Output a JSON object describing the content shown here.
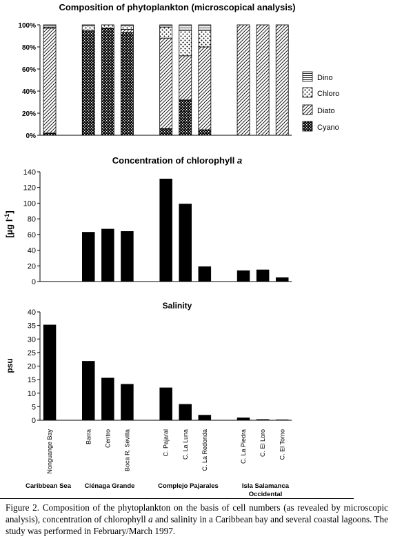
{
  "chart_data": [
    {
      "type": "bar",
      "stacked": true,
      "title": "Composition of phytoplankton (microscopical analysis)",
      "categories": [
        "Nonguange Bay",
        "",
        "Barra",
        "Centro",
        "Boca R. Sevilla",
        "",
        "C. Pajaral",
        "C. La Luna",
        "C. La Redonda",
        "",
        "C. La Piedra",
        "C. El Loro",
        "C. El Torno"
      ],
      "ylim": [
        0,
        100
      ],
      "yticks": [
        "0%",
        "20%",
        "40%",
        "60%",
        "80%",
        "100%"
      ],
      "legend_position": "right",
      "series": [
        {
          "name": "Cyano",
          "pattern": "dark-crosshatch",
          "values": [
            2,
            null,
            94,
            97,
            93,
            null,
            6,
            32,
            5,
            null,
            0,
            0,
            0
          ]
        },
        {
          "name": "Diato",
          "pattern": "diagonal-hatch",
          "values": [
            95,
            null,
            1,
            0,
            3,
            null,
            82,
            40,
            75,
            null,
            100,
            100,
            100
          ]
        },
        {
          "name": "Chloro",
          "pattern": "dots",
          "values": [
            1,
            null,
            4,
            3,
            3,
            null,
            10,
            23,
            15,
            null,
            0,
            0,
            0
          ]
        },
        {
          "name": "Dino",
          "pattern": "horizontal-lines",
          "values": [
            2,
            null,
            1,
            0,
            1,
            null,
            2,
            5,
            5,
            null,
            0,
            0,
            0
          ]
        }
      ]
    },
    {
      "type": "bar",
      "title_prefix": "Concentration of chlorophyll ",
      "title_italic": "a",
      "ylabel": "[µg l-1]",
      "ylabel_main": "[µg l",
      "ylabel_sup": "-1",
      "ylabel_end": "]",
      "ylim": [
        0,
        140
      ],
      "yticks": [
        "0",
        "20",
        "40",
        "60",
        "80",
        "100",
        "120",
        "140"
      ],
      "categories": [
        "Nonguange Bay",
        "",
        "Barra",
        "Centro",
        "Boca R. Sevilla",
        "",
        "C. Pajaral",
        "C. La Luna",
        "C. La Redonda",
        "",
        "C. La Piedra",
        "C. El Loro",
        "C. El Torno"
      ],
      "values": [
        null,
        null,
        63,
        67,
        64,
        null,
        131,
        99,
        19,
        null,
        14,
        15,
        5
      ],
      "color": "#000000"
    },
    {
      "type": "bar",
      "title": "Salinity",
      "ylabel": "psu",
      "ylim": [
        0,
        40
      ],
      "yticks": [
        "0",
        "5",
        "10",
        "15",
        "20",
        "25",
        "30",
        "35",
        "40"
      ],
      "categories": [
        "Nonguange Bay",
        "",
        "Barra",
        "Centro",
        "Boca R. Sevilla",
        "",
        "C. Pajaral",
        "C. La Luna",
        "C. La Redonda",
        "",
        "C. La Piedra",
        "C. El Loro",
        "C. El Torno"
      ],
      "values": [
        35.2,
        null,
        21.8,
        15.6,
        13.3,
        null,
        12.0,
        5.9,
        1.9,
        null,
        0.9,
        0.3,
        0.2
      ],
      "color": "#000000"
    }
  ],
  "station_labels": [
    "Nonguange Bay",
    "Barra",
    "Centro",
    "Boca R. Sevilla",
    "C. Pajaral",
    "C. La Luna",
    "C. La Redonda",
    "C. La Piedra",
    "C. El Loro",
    "C. El Torno"
  ],
  "groups": [
    {
      "label": "Caribbean Sea",
      "label2": ""
    },
    {
      "label": "Ciénaga Grande",
      "label2": ""
    },
    {
      "label": "Complejo Pajarales",
      "label2": ""
    },
    {
      "label": "Isla Salamanca",
      "label2": "Occidental"
    }
  ],
  "caption": {
    "part1": "Figure 2. Composition of the phytoplankton on the basis of cell numbers (as revealed by microscopic analysis), concentration of chlorophyll ",
    "italic": "a",
    "part2": " and salinity in a Caribbean bay and several coastal lagoons. The study was performed in February/March 1997."
  },
  "colors": {
    "bar": "#000000",
    "background": "#ffffff"
  }
}
